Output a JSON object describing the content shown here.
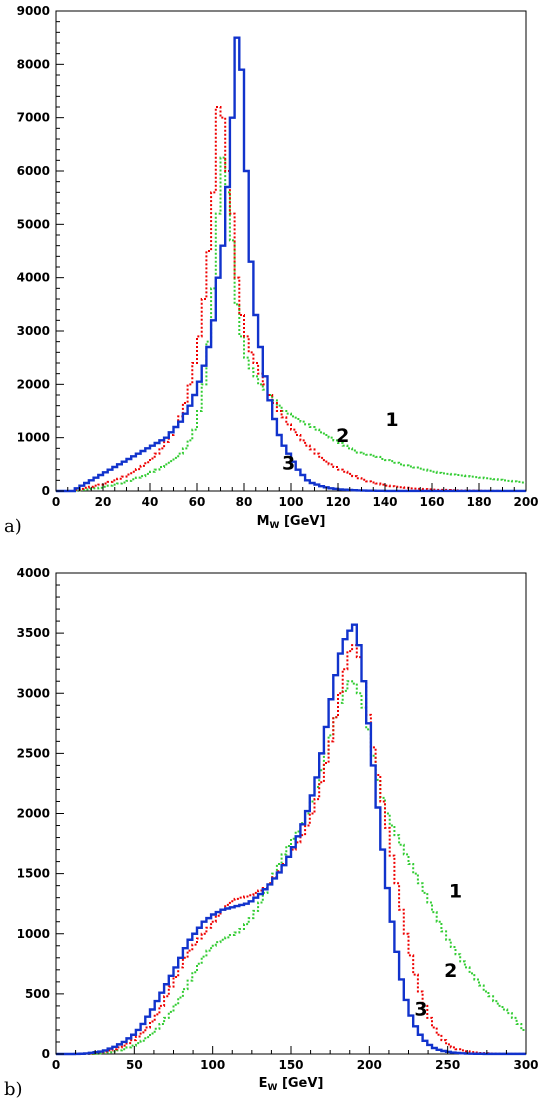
{
  "chart_data": [
    {
      "type": "line",
      "panel_label": "a)",
      "xlabel_main": "M",
      "xlabel_sub": "W",
      "xlabel_unit": " [GeV]",
      "xlim": [
        0,
        200
      ],
      "ylim": [
        0,
        9000
      ],
      "xticks": [
        0,
        20,
        40,
        60,
        80,
        100,
        120,
        140,
        160,
        180,
        200
      ],
      "yticks": [
        0,
        1000,
        2000,
        3000,
        4000,
        5000,
        6000,
        7000,
        8000,
        9000
      ],
      "bin_width": 2,
      "series": [
        {
          "label": "1",
          "label_pos": [
            143,
            1220
          ],
          "style": "dotted",
          "color": "#33cc33",
          "values": [
            0,
            0,
            0,
            0,
            10,
            20,
            30,
            40,
            50,
            60,
            80,
            100,
            120,
            140,
            160,
            190,
            220,
            250,
            280,
            320,
            360,
            400,
            450,
            500,
            560,
            620,
            700,
            800,
            950,
            1150,
            1500,
            2000,
            2800,
            3800,
            5200,
            6250,
            5600,
            4700,
            3500,
            2900,
            2500,
            2300,
            2150,
            2000,
            1900,
            1800,
            1700,
            1600,
            1500,
            1450,
            1400,
            1350,
            1300,
            1250,
            1200,
            1150,
            1100,
            1050,
            1000,
            950,
            900,
            850,
            800,
            760,
            720,
            700,
            680,
            660,
            640,
            600,
            580,
            560,
            530,
            500,
            480,
            460,
            440,
            420,
            400,
            380,
            360,
            340,
            330,
            320,
            310,
            300,
            290,
            280,
            270,
            260,
            250,
            240,
            230,
            220,
            210,
            200,
            190,
            180,
            170,
            160
          ]
        },
        {
          "label": "2",
          "label_pos": [
            122,
            920
          ],
          "style": "dotted",
          "color": "#ee0000",
          "values": [
            0,
            0,
            0,
            0,
            20,
            40,
            60,
            80,
            100,
            120,
            140,
            170,
            200,
            230,
            270,
            310,
            360,
            410,
            470,
            540,
            610,
            700,
            800,
            920,
            1050,
            1200,
            1400,
            1650,
            2000,
            2400,
            2900,
            3600,
            4500,
            5600,
            7200,
            7000,
            6000,
            5200,
            4000,
            3300,
            2900,
            2600,
            2400,
            2200,
            2000,
            1800,
            1650,
            1500,
            1380,
            1250,
            1150,
            1050,
            950,
            850,
            780,
            700,
            620,
            550,
            500,
            450,
            400,
            360,
            320,
            280,
            240,
            210,
            180,
            160,
            140,
            120,
            100,
            90,
            80,
            70,
            60,
            50,
            45,
            40,
            35,
            30,
            25,
            22,
            20,
            18,
            15,
            12,
            10,
            8,
            6,
            5,
            4,
            3,
            2,
            2,
            1,
            1,
            1,
            1,
            1,
            1
          ]
        },
        {
          "label": "3",
          "label_pos": [
            99,
            400
          ],
          "style": "solid",
          "color": "#1133cc",
          "values": [
            0,
            0,
            0,
            0,
            50,
            100,
            150,
            200,
            250,
            300,
            350,
            400,
            450,
            500,
            550,
            600,
            650,
            700,
            750,
            800,
            850,
            900,
            950,
            1000,
            1100,
            1200,
            1300,
            1450,
            1600,
            1800,
            2050,
            2350,
            2700,
            3200,
            4000,
            4600,
            5700,
            7000,
            8500,
            7900,
            6000,
            4300,
            3300,
            2700,
            2150,
            1700,
            1350,
            1050,
            850,
            700,
            550,
            400,
            300,
            200,
            150,
            120,
            90,
            70,
            50,
            40,
            30,
            25,
            20,
            15,
            10,
            8,
            6,
            5,
            4,
            3,
            2,
            2,
            1,
            1,
            1,
            1,
            1,
            1,
            1,
            1,
            1,
            1,
            1,
            1,
            1,
            1,
            1,
            1,
            1,
            1,
            1,
            1,
            1,
            1,
            1,
            1,
            1,
            1,
            1,
            1
          ]
        }
      ]
    },
    {
      "type": "line",
      "panel_label": "b)",
      "xlabel_main": "E",
      "xlabel_sub": "W",
      "xlabel_unit": " [GeV]",
      "xlim": [
        0,
        300
      ],
      "ylim": [
        0,
        4000
      ],
      "xticks": [
        0,
        50,
        100,
        150,
        200,
        250,
        300
      ],
      "yticks": [
        0,
        500,
        1000,
        1500,
        2000,
        2500,
        3000,
        3500,
        4000
      ],
      "bin_width": 3,
      "series": [
        {
          "label": "1",
          "label_pos": [
            255,
            1300
          ],
          "style": "dotted",
          "color": "#33cc33",
          "values": [
            0,
            0,
            0,
            0,
            0,
            0,
            0,
            0,
            2,
            5,
            10,
            15,
            20,
            30,
            40,
            55,
            70,
            90,
            110,
            140,
            170,
            210,
            250,
            300,
            350,
            410,
            470,
            540,
            610,
            680,
            750,
            810,
            860,
            900,
            930,
            950,
            970,
            990,
            1010,
            1040,
            1080,
            1130,
            1190,
            1260,
            1340,
            1420,
            1500,
            1580,
            1660,
            1730,
            1790,
            1850,
            1920,
            2000,
            2100,
            2220,
            2360,
            2500,
            2650,
            2800,
            2920,
            3020,
            3100,
            3080,
            3000,
            2880,
            2700,
            2480,
            2280,
            2130,
            2000,
            1900,
            1820,
            1740,
            1660,
            1580,
            1500,
            1420,
            1340,
            1260,
            1180,
            1100,
            1020,
            950,
            890,
            830,
            770,
            720,
            670,
            620,
            570,
            520,
            480,
            440,
            400,
            370,
            340,
            300,
            250,
            200
          ]
        },
        {
          "label": "2",
          "label_pos": [
            252,
            640
          ],
          "style": "dotted",
          "color": "#ee0000",
          "values": [
            0,
            0,
            0,
            0,
            0,
            1,
            2,
            5,
            10,
            15,
            20,
            30,
            40,
            55,
            70,
            90,
            115,
            145,
            180,
            220,
            270,
            330,
            400,
            480,
            560,
            640,
            720,
            800,
            860,
            910,
            960,
            1000,
            1050,
            1100,
            1150,
            1200,
            1240,
            1270,
            1290,
            1300,
            1310,
            1320,
            1340,
            1360,
            1380,
            1420,
            1470,
            1520,
            1580,
            1640,
            1700,
            1760,
            1820,
            1900,
            2000,
            2120,
            2260,
            2420,
            2600,
            2800,
            3000,
            3200,
            3350,
            3400,
            3300,
            3100,
            2820,
            2550,
            2320,
            2100,
            1880,
            1650,
            1420,
            1200,
            1000,
            820,
            660,
            520,
            400,
            300,
            220,
            160,
            115,
            80,
            55,
            40,
            30,
            22,
            16,
            12,
            8,
            6,
            4,
            3,
            2,
            1,
            1,
            1,
            1,
            1
          ]
        },
        {
          "label": "3",
          "label_pos": [
            233,
            320
          ],
          "style": "solid",
          "color": "#1133cc",
          "values": [
            0,
            0,
            0,
            0,
            1,
            2,
            5,
            10,
            15,
            20,
            30,
            45,
            60,
            80,
            100,
            130,
            160,
            200,
            250,
            310,
            370,
            440,
            510,
            580,
            650,
            720,
            800,
            880,
            950,
            1000,
            1050,
            1100,
            1130,
            1160,
            1180,
            1200,
            1210,
            1220,
            1230,
            1240,
            1250,
            1270,
            1300,
            1330,
            1370,
            1410,
            1460,
            1510,
            1570,
            1640,
            1720,
            1810,
            1910,
            2020,
            2150,
            2300,
            2500,
            2720,
            2950,
            3150,
            3330,
            3450,
            3520,
            3570,
            3400,
            3100,
            2750,
            2400,
            2050,
            1700,
            1380,
            1100,
            850,
            620,
            450,
            320,
            230,
            160,
            110,
            75,
            50,
            35,
            25,
            18,
            12,
            9,
            6,
            4,
            3,
            2,
            2,
            1,
            1,
            1,
            1,
            1,
            1,
            1,
            1,
            1
          ]
        }
      ]
    }
  ]
}
